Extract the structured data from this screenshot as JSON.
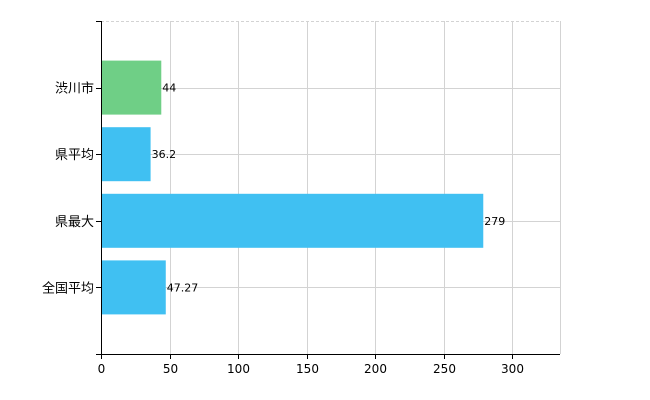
{
  "chart_data": {
    "type": "bar",
    "orientation": "horizontal",
    "categories": [
      "渋川市",
      "県平均",
      "県最大",
      "全国平均"
    ],
    "values": [
      44,
      36.2,
      279,
      47.27
    ],
    "value_labels": [
      "44",
      "36.2",
      "279",
      "47.27"
    ],
    "colors": [
      "#6fcf86",
      "#40c0f2",
      "#40c0f2",
      "#40c0f2"
    ],
    "xlim": [
      0,
      335
    ],
    "xticks": [
      0,
      50,
      100,
      150,
      200,
      250,
      300
    ],
    "tick_labels": [
      "0",
      "50",
      "100",
      "150",
      "200",
      "250",
      "300"
    ],
    "grid": true,
    "legend": "none",
    "title": "",
    "xlabel": "",
    "ylabel": ""
  }
}
